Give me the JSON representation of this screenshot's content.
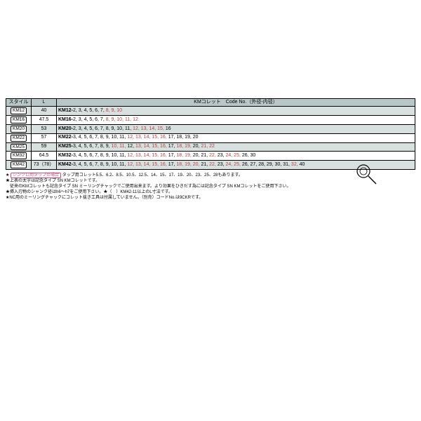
{
  "colors": {
    "header_bg": "#b8c8c8",
    "even_bg": "#d8e0e0",
    "odd_bg": "#ffffff",
    "border": "#000000",
    "red": "#b04040",
    "pink": "#c05080"
  },
  "header": {
    "style": "スタイル",
    "L": "L",
    "code": "KMコレット　Code No.（外径-内径）"
  },
  "rows": [
    {
      "style": "KM12",
      "L": "40",
      "prefix": "KM12-",
      "segs": [
        {
          "t": "2, 3, 4, 5, 6, 7, ",
          "c": "n"
        },
        {
          "t": "8, 9, 10",
          "c": "r"
        }
      ]
    },
    {
      "style": "KM16",
      "L": "47.5",
      "prefix": "KM16-",
      "segs": [
        {
          "t": "2, 3, 4, 5, 6, 7, ",
          "c": "n"
        },
        {
          "t": "8, 9, 10, 11, 12",
          "c": "r"
        }
      ]
    },
    {
      "style": "KM20",
      "L": "53",
      "prefix": "KM20-",
      "segs": [
        {
          "t": "2, 3, 4, 5, 6, 7, 8, 9, 10, 11, ",
          "c": "n"
        },
        {
          "t": "12, 13, 14, 15, ",
          "c": "r"
        },
        {
          "t": "16",
          "c": "n"
        }
      ]
    },
    {
      "style": "KM22",
      "L": "57",
      "prefix": "KM22-",
      "segs": [
        {
          "t": "3, 4, 5, 6, 7, 8, 9, 10, 11, ",
          "c": "n"
        },
        {
          "t": "12, 13, 14, 15, 16, ",
          "c": "r"
        },
        {
          "t": "17, 18, 19, 20",
          "c": "n"
        }
      ]
    },
    {
      "style": "KM25",
      "L": "59",
      "prefix": "KM25-",
      "segs": [
        {
          "t": "3, 4, 5, 6, 7, 8, 9, ",
          "c": "n"
        },
        {
          "t": "10, 11, ",
          "c": "r"
        },
        {
          "t": "12, ",
          "c": "n"
        },
        {
          "t": "13, 14, 15, 16, ",
          "c": "r"
        },
        {
          "t": "17, ",
          "c": "n"
        },
        {
          "t": "18, 19, ",
          "c": "r"
        },
        {
          "t": "20, ",
          "c": "n"
        },
        {
          "t": "21, 22",
          "c": "r"
        }
      ]
    },
    {
      "style": "KM32",
      "L": "64.5",
      "prefix": "KM32-",
      "segs": [
        {
          "t": "3, 4, 5, 6, 7, 8, 9, 10, 11, ",
          "c": "n"
        },
        {
          "t": "12, 13, 14, 15, 16, ",
          "c": "r"
        },
        {
          "t": "17, ",
          "c": "n"
        },
        {
          "t": "18, 19, ",
          "c": "r"
        },
        {
          "t": "20, 21, ",
          "c": "n"
        },
        {
          "t": "22, ",
          "c": "r"
        },
        {
          "t": "23, ",
          "c": "n"
        },
        {
          "t": "24, 25, ",
          "c": "r"
        },
        {
          "t": "26, 30",
          "c": "n"
        }
      ]
    },
    {
      "style": "KM42",
      "L": "73（78）",
      "prefix": "KM42-",
      "segs": [
        {
          "t": "3, 4, 5, 6, 7, 8, 9, 10, 11, ",
          "c": "n"
        },
        {
          "t": "12, 13, 14, 15, 16, ",
          "c": "r"
        },
        {
          "t": "17, ",
          "c": "n"
        },
        {
          "t": "18, 19, 20, ",
          "c": "r"
        },
        {
          "t": "21, ",
          "c": "n"
        },
        {
          "t": "22, ",
          "c": "r"
        },
        {
          "t": "23, ",
          "c": "n"
        },
        {
          "t": "24, 25, ",
          "c": "r"
        },
        {
          "t": "26, 27, 28, 29, 30, 31, ",
          "c": "n"
        },
        {
          "t": "32, ",
          "c": "r"
        },
        {
          "t": "40",
          "c": "n"
        }
      ]
    }
  ],
  "notes": {
    "n1a": "★",
    "n1_pink": "シンクロ用タップの場合",
    "n1b": "タップ用コレット5.5、6.2、8.5、10.5、12.5、14、15、17、19、20、23、25、28もあります。",
    "n2": "★上表の太字は記念タイプ SN KMコレットです。",
    "n3": "　従来のKMコレットも記念タイプ SN ミーリングチャックでご使用出来ます。より効果をひきだす為には記念タイプ SN KMコレットをご使用下さい。",
    "n4": "★挿入刃物のシャンク径はh6〜h7をご使用下さい。★（　）KM42-11以上のL寸法です。",
    "n5": "★NC用のミーリングチャックにコレット抜き工具は付属していません。（別売）コードNo.は9CKRです。"
  },
  "icon": {
    "name": "magnifier-icon"
  }
}
